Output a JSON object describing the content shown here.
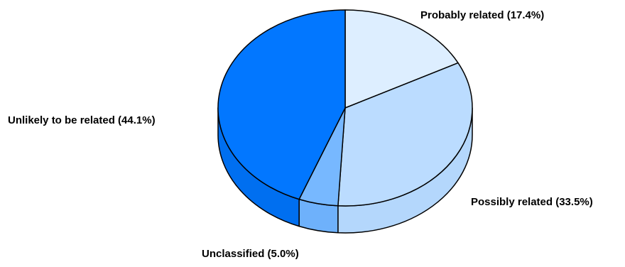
{
  "chart_data": {
    "type": "pie",
    "style": "3d",
    "title": "",
    "series": [
      {
        "values": [
          17.4,
          33.5,
          5.0,
          44.1
        ],
        "labels": [
          "Probably related",
          "Possibly related",
          "Unclassified",
          "Unlikely to be related"
        ],
        "label_texts": [
          "Probably related (17.4%)",
          "Possibly related (33.5%)",
          "Unclassified (5.0%)",
          "Unlikely to be related (44.1%)"
        ],
        "colors": [
          "#ddeeff",
          "#bbdcff",
          "#77b8ff",
          "#0277ff"
        ],
        "side_colors": [
          "#d5e8fc",
          "#b4d7fc",
          "#6eb1fb",
          "#006ff0"
        ]
      }
    ],
    "start_angle": "12 o'clock",
    "direction": "clockwise",
    "legend": "none"
  }
}
